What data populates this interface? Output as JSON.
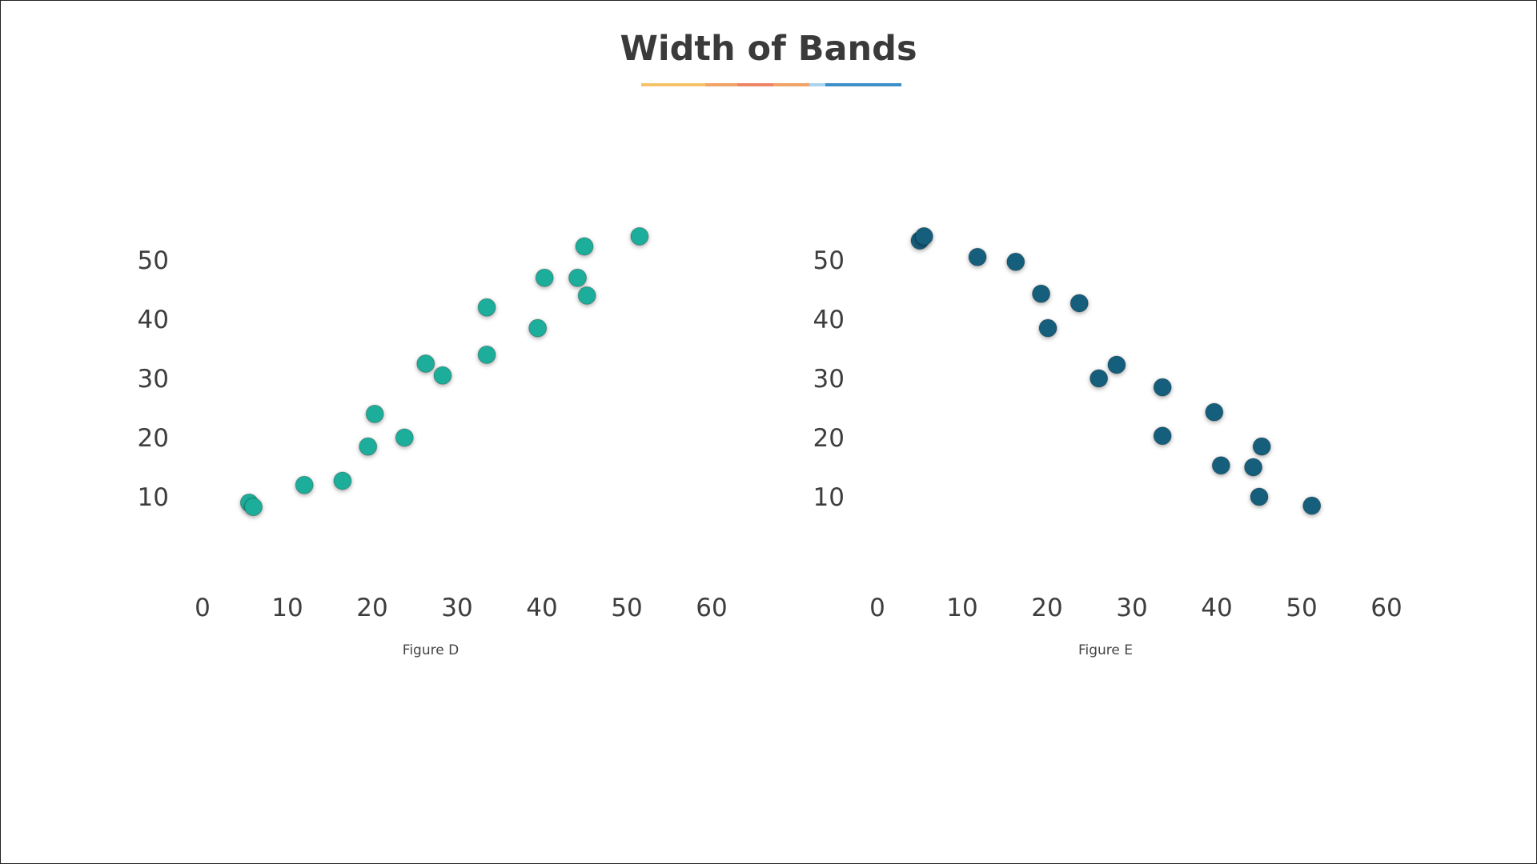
{
  "page": {
    "title": "Width of Bands",
    "underline_colors": [
      "#f6c36a",
      "#f2a468",
      "#ee8466",
      "#f2a468",
      "#a9d4ef",
      "#3c8fc8"
    ]
  },
  "chart_data": [
    {
      "type": "scatter",
      "caption": "Figure D",
      "color": "#1fae9a",
      "axis_color": "#26a898",
      "xlim": [
        0,
        60
      ],
      "ylim": [
        0,
        57
      ],
      "x_ticks": [
        0,
        10,
        20,
        30,
        40,
        50,
        60
      ],
      "y_ticks": [
        10,
        20,
        30,
        40,
        50
      ],
      "points": [
        {
          "x": 5.5,
          "y": 9
        },
        {
          "x": 6,
          "y": 8.3
        },
        {
          "x": 12,
          "y": 12
        },
        {
          "x": 16.5,
          "y": 12.7
        },
        {
          "x": 19.5,
          "y": 18.5
        },
        {
          "x": 20.3,
          "y": 24
        },
        {
          "x": 23.8,
          "y": 20
        },
        {
          "x": 26.3,
          "y": 32.5
        },
        {
          "x": 28.3,
          "y": 30.5
        },
        {
          "x": 33.5,
          "y": 34
        },
        {
          "x": 33.5,
          "y": 42
        },
        {
          "x": 39.5,
          "y": 38.5
        },
        {
          "x": 40.3,
          "y": 47
        },
        {
          "x": 44.2,
          "y": 47
        },
        {
          "x": 45,
          "y": 52.3
        },
        {
          "x": 45.3,
          "y": 44
        },
        {
          "x": 51.5,
          "y": 54
        }
      ]
    },
    {
      "type": "scatter",
      "caption": "Figure E",
      "color": "#125e7c",
      "axis_color": "#1d5f7b",
      "xlim": [
        0,
        60
      ],
      "ylim": [
        0,
        57
      ],
      "x_ticks": [
        0,
        10,
        20,
        30,
        40,
        50,
        60
      ],
      "y_ticks": [
        10,
        20,
        30,
        40,
        50
      ],
      "points": [
        {
          "x": 5,
          "y": 53.3
        },
        {
          "x": 5.5,
          "y": 54
        },
        {
          "x": 11.8,
          "y": 50.5
        },
        {
          "x": 16.3,
          "y": 49.7
        },
        {
          "x": 19.3,
          "y": 44.3
        },
        {
          "x": 20.1,
          "y": 38.5
        },
        {
          "x": 23.8,
          "y": 42.7
        },
        {
          "x": 26.1,
          "y": 30
        },
        {
          "x": 28.2,
          "y": 32.3
        },
        {
          "x": 33.6,
          "y": 28.5
        },
        {
          "x": 33.6,
          "y": 20.3
        },
        {
          "x": 39.7,
          "y": 24.3
        },
        {
          "x": 40.5,
          "y": 15.3
        },
        {
          "x": 44.3,
          "y": 15
        },
        {
          "x": 45,
          "y": 10
        },
        {
          "x": 45.3,
          "y": 18.5
        },
        {
          "x": 51.2,
          "y": 8.5
        }
      ]
    }
  ]
}
